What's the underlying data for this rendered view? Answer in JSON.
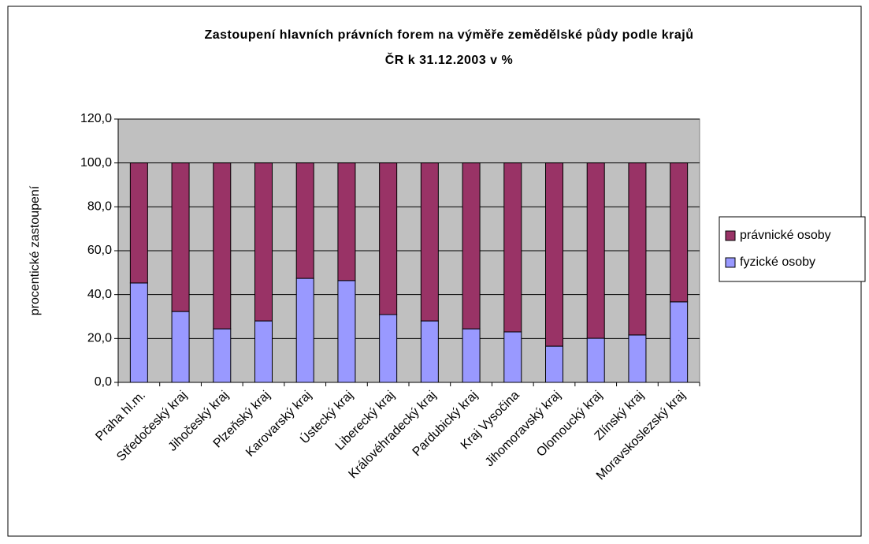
{
  "chart_data": {
    "type": "stacked_bar",
    "title": [
      "Zastoupení hlavních právních forem na výměře zemědělské půdy podle krajů",
      "ČR k 31.12.2003 v %"
    ],
    "y_label": "procentické zastoupení",
    "categories": [
      "Praha hl.m.",
      "Středočeský kraj",
      "Jihočeský kraj",
      "Plzeňský kraj",
      "Karovarský kraj",
      "Ústecký kraj",
      "Liberecký kraj",
      "Královéhradecký kraj",
      "Pardubický kraj",
      "Kraj Vysočina",
      "Jihomoravský kraj",
      "Olomoucký kraj",
      "Zlínský kraj",
      "Moravskoslezský kraj"
    ],
    "series": [
      {
        "name": "fyzické osoby",
        "color": "#9999ff",
        "values": [
          45.3,
          32.3,
          24.4,
          28.0,
          47.4,
          46.4,
          30.9,
          28.0,
          24.4,
          23.0,
          16.5,
          20.1,
          21.6,
          36.7
        ]
      },
      {
        "name": "právnické osoby",
        "color": "#993366",
        "values": [
          54.7,
          67.7,
          75.6,
          72.0,
          52.6,
          53.6,
          69.1,
          72.0,
          75.6,
          77.0,
          83.5,
          79.9,
          78.4,
          63.3
        ]
      }
    ],
    "ylim": [
      0,
      120
    ],
    "yticks": [
      {
        "value": 0,
        "label": "0,0"
      },
      {
        "value": 20,
        "label": "20,0"
      },
      {
        "value": 40,
        "label": "40,0"
      },
      {
        "value": 60,
        "label": "60,0"
      },
      {
        "value": 80,
        "label": "80,0"
      },
      {
        "value": 100,
        "label": "100,0"
      },
      {
        "value": 120,
        "label": "120,0"
      }
    ],
    "grid": true,
    "legend": "right"
  }
}
